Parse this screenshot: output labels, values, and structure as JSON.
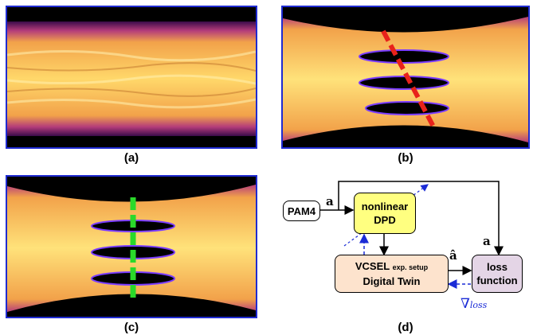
{
  "captions": {
    "a": "(a)",
    "b": "(b)",
    "c": "(c)",
    "d": "(d)"
  },
  "diagram": {
    "pam4": "PAM4",
    "dpd_line1": "nonlinear",
    "dpd_line2": "DPD",
    "vcsel_main": "VCSEL",
    "vcsel_small": "exp. setup",
    "vcsel_line2": "Digital Twin",
    "loss_line1": "loss",
    "loss_line2": "function",
    "label_a1": "a",
    "label_a2": "a",
    "label_ahat": "â",
    "label_grad_symbol": "∇",
    "label_grad_sub": "loss"
  },
  "colors": {
    "panel_border": "#1f2bd1",
    "pam4_fill": "#ffffff",
    "dpd_fill": "#ffff80",
    "vcsel_fill": "#fde3cd",
    "loss_fill": "#e4d5e6",
    "gradient_arrow": "#1a2bd6",
    "marker_b": "#e8221b",
    "marker_c": "#2ad92a"
  }
}
